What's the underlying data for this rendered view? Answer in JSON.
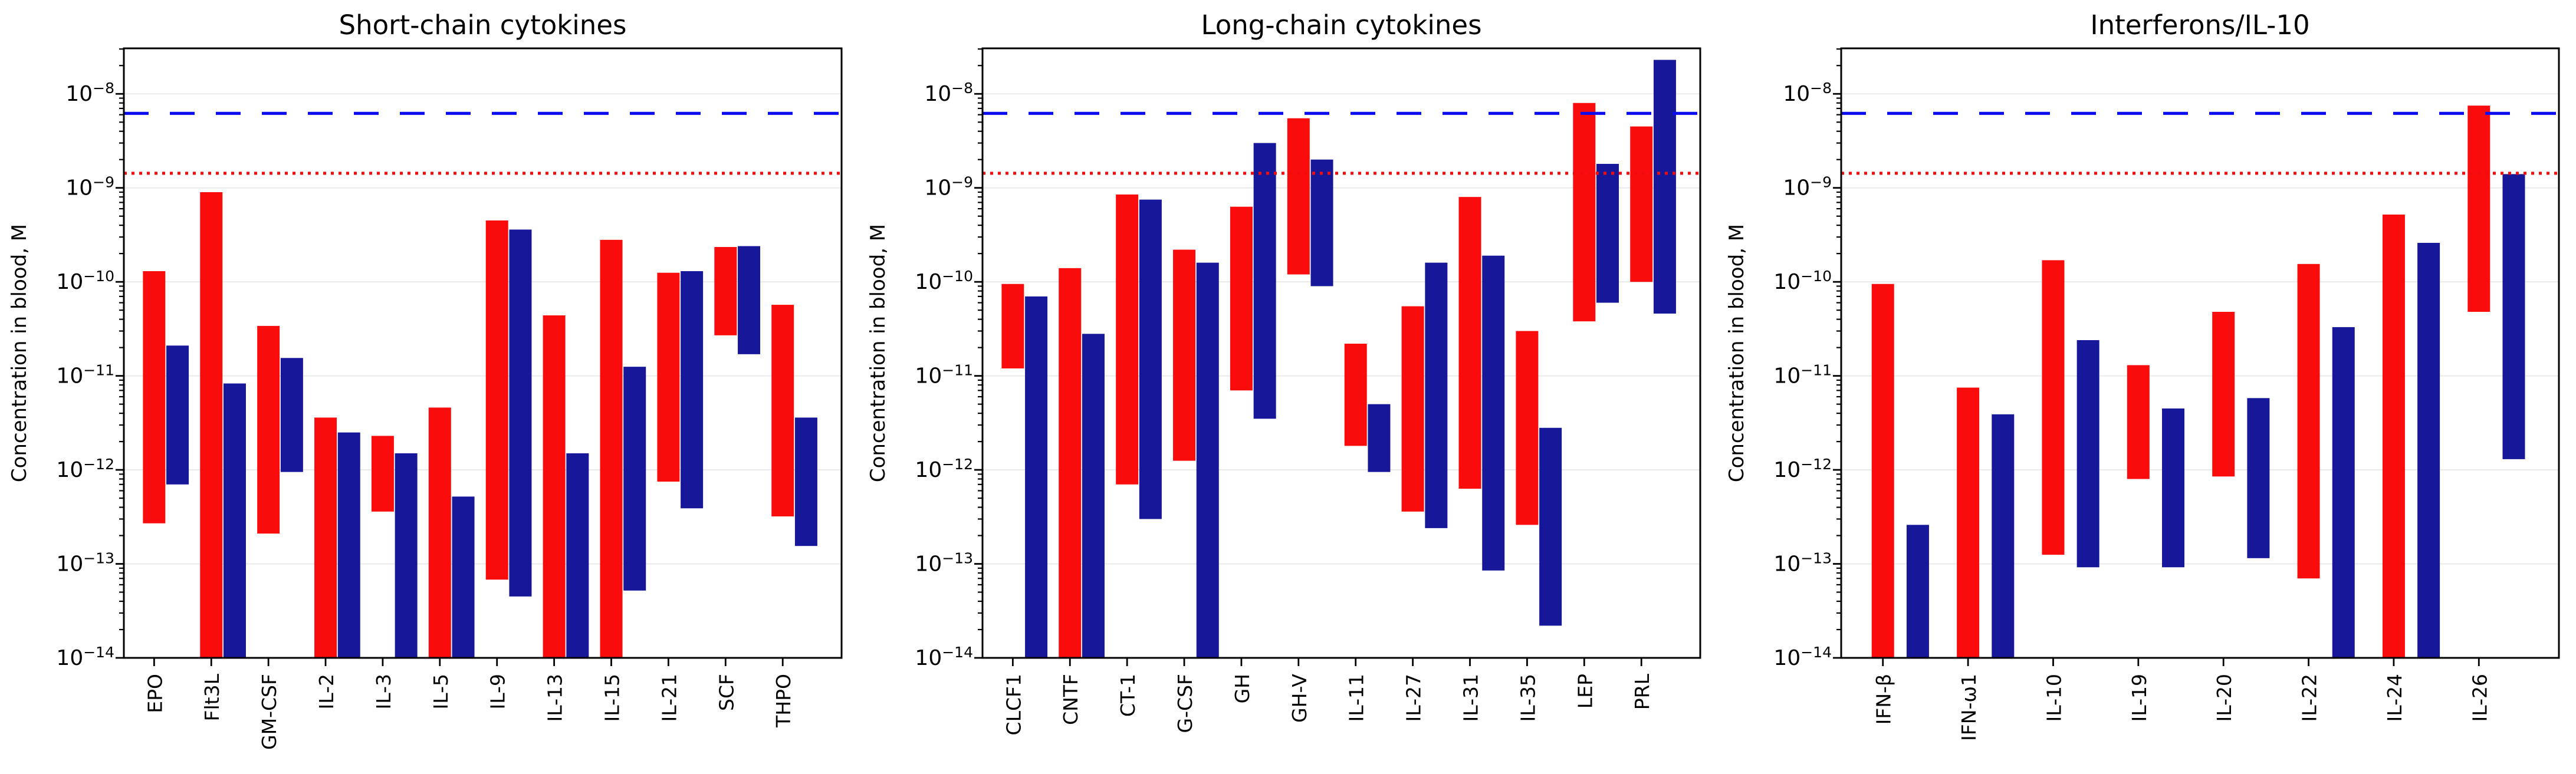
{
  "figure_name": "Cytokine concentration in blood (log-scale range bars)",
  "colors": {
    "series_red": "#fb0c0c",
    "series_navy": "#17179a",
    "ref_dashed_blue": "#0b0bf0",
    "ref_dotted_red": "#f20c0c",
    "gridline": "#e8e8e8",
    "axis": "#000000",
    "background": "#ffffff"
  },
  "chart_data": [
    {
      "type": "bar",
      "subtype": "floating-range-bars-log-scale",
      "title": "Short-chain cytokines",
      "xlabel": "",
      "ylabel": "Concentration in blood, M",
      "ylim": [
        1e-14,
        3.05e-08
      ],
      "ytick_exponents": [
        -8,
        -9,
        -10,
        -11,
        -12,
        -13,
        -14
      ],
      "grid": true,
      "legend": "none",
      "categories": [
        "EPO",
        "Flt3L",
        "GM-CSF",
        "IL-2",
        "IL-3",
        "IL-5",
        "IL-9",
        "IL-13",
        "IL-15",
        "IL-21",
        "SCF",
        "THPO"
      ],
      "series": [
        {
          "name": "red",
          "color": "#fb0c0c",
          "note": "low null means bar extends below axis minimum 1e-14",
          "ranges": [
            [
              2.7e-13,
              1.3e-10
            ],
            [
              null,
              9e-10
            ],
            [
              2.1e-13,
              3.4e-11
            ],
            [
              null,
              3.6e-12
            ],
            [
              3.6e-13,
              2.3e-12
            ],
            [
              null,
              4.6e-12
            ],
            [
              6.8e-14,
              4.5e-10
            ],
            [
              null,
              4.4e-11
            ],
            [
              null,
              2.8e-10
            ],
            [
              7.5e-13,
              1.25e-10
            ],
            [
              2.7e-11,
              2.35e-10
            ],
            [
              3.2e-13,
              5.7e-11
            ]
          ]
        },
        {
          "name": "navy",
          "color": "#17179a",
          "ranges": [
            [
              7e-13,
              2.1e-11
            ],
            [
              null,
              8.3e-12
            ],
            [
              9.5e-13,
              1.55e-11
            ],
            [
              null,
              2.5e-12
            ],
            [
              null,
              1.5e-12
            ],
            [
              null,
              5.2e-13
            ],
            [
              4.5e-14,
              3.6e-10
            ],
            [
              null,
              1.5e-12
            ],
            [
              5.2e-14,
              1.25e-11
            ],
            [
              3.9e-13,
              1.3e-10
            ],
            [
              1.7e-11,
              2.4e-10
            ],
            [
              1.55e-13,
              3.6e-12
            ]
          ]
        }
      ],
      "ref_lines": [
        {
          "value": 6.2e-09,
          "color": "#0b0bf0",
          "style": "dashed"
        },
        {
          "value": 1.43e-09,
          "color": "#f20c0c",
          "style": "dotted"
        }
      ]
    },
    {
      "type": "bar",
      "subtype": "floating-range-bars-log-scale",
      "title": "Long-chain cytokines",
      "xlabel": "",
      "ylabel": "Concentration in blood, M",
      "ylim": [
        1e-14,
        3.05e-08
      ],
      "ytick_exponents": [
        -8,
        -9,
        -10,
        -11,
        -12,
        -13,
        -14
      ],
      "grid": true,
      "legend": "none",
      "categories": [
        "CLCF1",
        "CNTF",
        "CT-1",
        "G-CSF",
        "GH",
        "GH-V",
        "IL-11",
        "IL-27",
        "IL-31",
        "IL-35",
        "LEP",
        "PRL"
      ],
      "series": [
        {
          "name": "red",
          "color": "#fb0c0c",
          "ranges": [
            [
              1.2e-11,
              9.5e-11
            ],
            [
              null,
              1.4e-10
            ],
            [
              7e-13,
              8.5e-10
            ],
            [
              1.25e-12,
              2.2e-10
            ],
            [
              7e-12,
              6.3e-10
            ],
            [
              1.2e-10,
              5.5e-09
            ],
            [
              1.8e-12,
              2.2e-11
            ],
            [
              3.6e-13,
              5.5e-11
            ],
            [
              6.3e-13,
              8e-10
            ],
            [
              2.6e-13,
              3e-11
            ],
            [
              3.8e-11,
              8e-09
            ],
            [
              1e-10,
              4.5e-09
            ]
          ]
        },
        {
          "name": "navy",
          "color": "#17179a",
          "ranges": [
            [
              null,
              7e-11
            ],
            [
              null,
              2.8e-11
            ],
            [
              3e-13,
              7.5e-10
            ],
            [
              null,
              1.6e-10
            ],
            [
              3.5e-12,
              3e-09
            ],
            [
              9e-11,
              2e-09
            ],
            [
              9.5e-13,
              5e-12
            ],
            [
              2.4e-13,
              1.6e-10
            ],
            [
              8.5e-14,
              1.9e-10
            ],
            [
              2.2e-14,
              2.8e-12
            ],
            [
              6e-11,
              1.8e-09
            ],
            [
              4.6e-11,
              2.3e-08
            ]
          ]
        }
      ],
      "ref_lines": [
        {
          "value": 6.2e-09,
          "color": "#0b0bf0",
          "style": "dashed"
        },
        {
          "value": 1.43e-09,
          "color": "#f20c0c",
          "style": "dotted"
        }
      ]
    },
    {
      "type": "bar",
      "subtype": "floating-range-bars-log-scale",
      "title": "Interferons/IL-10",
      "xlabel": "",
      "ylabel": "Concentration in blood, M",
      "ylim": [
        1e-14,
        3.05e-08
      ],
      "ytick_exponents": [
        -8,
        -9,
        -10,
        -11,
        -12,
        -13,
        -14
      ],
      "grid": true,
      "legend": "none",
      "categories": [
        "IFN-β",
        "IFN-ω1",
        "IL-10",
        "IL-19",
        "IL-20",
        "IL-22",
        "IL-24",
        "IL-26"
      ],
      "series": [
        {
          "name": "red",
          "color": "#fb0c0c",
          "ranges": [
            [
              null,
              9.5e-11
            ],
            [
              null,
              7.5e-12
            ],
            [
              1.25e-13,
              1.7e-10
            ],
            [
              8e-13,
              1.3e-11
            ],
            [
              8.5e-13,
              4.8e-11
            ],
            [
              7e-14,
              1.55e-10
            ],
            [
              null,
              5.2e-10
            ],
            [
              4.8e-11,
              7.5e-09
            ]
          ]
        },
        {
          "name": "navy",
          "color": "#17179a",
          "ranges": [
            [
              null,
              2.6e-13
            ],
            [
              null,
              3.9e-12
            ],
            [
              9.2e-14,
              2.4e-11
            ],
            [
              9.2e-14,
              4.5e-12
            ],
            [
              1.15e-13,
              5.8e-12
            ],
            [
              null,
              3.3e-11
            ],
            [
              null,
              2.6e-10
            ],
            [
              1.3e-12,
              1.4e-09
            ]
          ]
        }
      ],
      "ref_lines": [
        {
          "value": 6.2e-09,
          "color": "#0b0bf0",
          "style": "dashed"
        },
        {
          "value": 1.43e-09,
          "color": "#f20c0c",
          "style": "dotted"
        }
      ]
    }
  ]
}
